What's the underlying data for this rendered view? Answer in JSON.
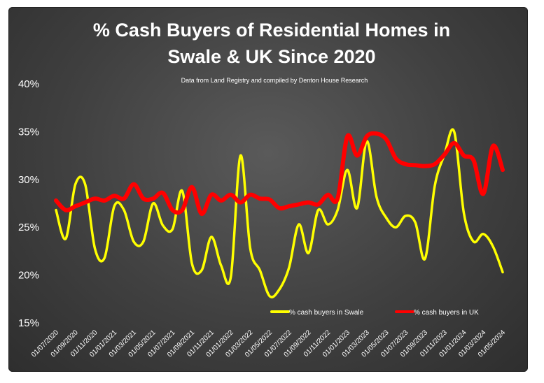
{
  "chart_data": {
    "type": "line",
    "title_lines": [
      "% Cash Buyers of Residential Homes in",
      "Swale & UK Since 2020"
    ],
    "subtitle": "Data from Land Registry and compiled by Denton House Research",
    "ylim": [
      15,
      40
    ],
    "y_ticks": [
      "15%",
      "20%",
      "25%",
      "30%",
      "35%",
      "40%"
    ],
    "y_tick_values": [
      15,
      20,
      25,
      30,
      35,
      40
    ],
    "x_tick_labels": [
      "01/07/2020",
      "01/09/2020",
      "01/11/2020",
      "01/01/2021",
      "01/03/2021",
      "01/05/2021",
      "01/07/2021",
      "01/09/2021",
      "01/11/2021",
      "01/01/2022",
      "01/03/2022",
      "01/05/2022",
      "01/07/2022",
      "01/09/2022",
      "01/11/2022",
      "01/01/2023",
      "01/03/2023",
      "01/05/2023",
      "01/07/2023",
      "01/09/2023",
      "01/11/2023",
      "01/01/2024",
      "01/03/2024",
      "01/05/2024"
    ],
    "x_months": [
      "07/2020",
      "08/2020",
      "09/2020",
      "10/2020",
      "11/2020",
      "12/2020",
      "01/2021",
      "02/2021",
      "03/2021",
      "04/2021",
      "05/2021",
      "06/2021",
      "07/2021",
      "08/2021",
      "09/2021",
      "10/2021",
      "11/2021",
      "12/2021",
      "01/2022",
      "02/2022",
      "03/2022",
      "04/2022",
      "05/2022",
      "06/2022",
      "07/2022",
      "08/2022",
      "09/2022",
      "10/2022",
      "11/2022",
      "12/2022",
      "01/2023",
      "02/2023",
      "03/2023",
      "04/2023",
      "05/2023",
      "06/2023",
      "07/2023",
      "08/2023",
      "09/2023",
      "10/2023",
      "11/2023",
      "12/2023",
      "01/2024",
      "02/2024",
      "03/2024",
      "04/2024",
      "05/2024"
    ],
    "grid": false,
    "legend_position": "bottom-right",
    "series": [
      {
        "name": "% cash buyers in Swale",
        "color": "#ffff00",
        "values": [
          26.8,
          23.8,
          29.5,
          29.5,
          22.8,
          21.8,
          27.2,
          26.8,
          23.5,
          23.5,
          27.5,
          25.2,
          24.8,
          28.8,
          21.2,
          20.5,
          24.0,
          21.0,
          19.8,
          32.5,
          22.8,
          20.5,
          17.8,
          18.5,
          20.8,
          25.3,
          22.3,
          26.8,
          25.3,
          26.8,
          31.0,
          27.0,
          34.0,
          28.2,
          26.0,
          25.0,
          26.2,
          25.5,
          21.7,
          29.3,
          32.6,
          35.0,
          26.5,
          23.5,
          24.3,
          23.0,
          20.3
        ]
      },
      {
        "name": "% cash buyers in UK",
        "color": "#ff0000",
        "values": [
          27.8,
          26.8,
          27.2,
          27.6,
          28.0,
          27.8,
          28.3,
          28.0,
          29.5,
          28.0,
          28.0,
          28.6,
          26.8,
          26.8,
          29.2,
          26.4,
          28.4,
          27.8,
          28.4,
          27.6,
          28.4,
          28.0,
          27.9,
          27.0,
          27.2,
          27.4,
          27.6,
          27.4,
          28.4,
          28.0,
          34.5,
          32.5,
          34.5,
          34.8,
          34.2,
          32.2,
          31.6,
          31.5,
          31.4,
          31.6,
          32.6,
          33.8,
          32.5,
          32.0,
          28.5,
          33.5,
          31.0
        ]
      }
    ]
  }
}
